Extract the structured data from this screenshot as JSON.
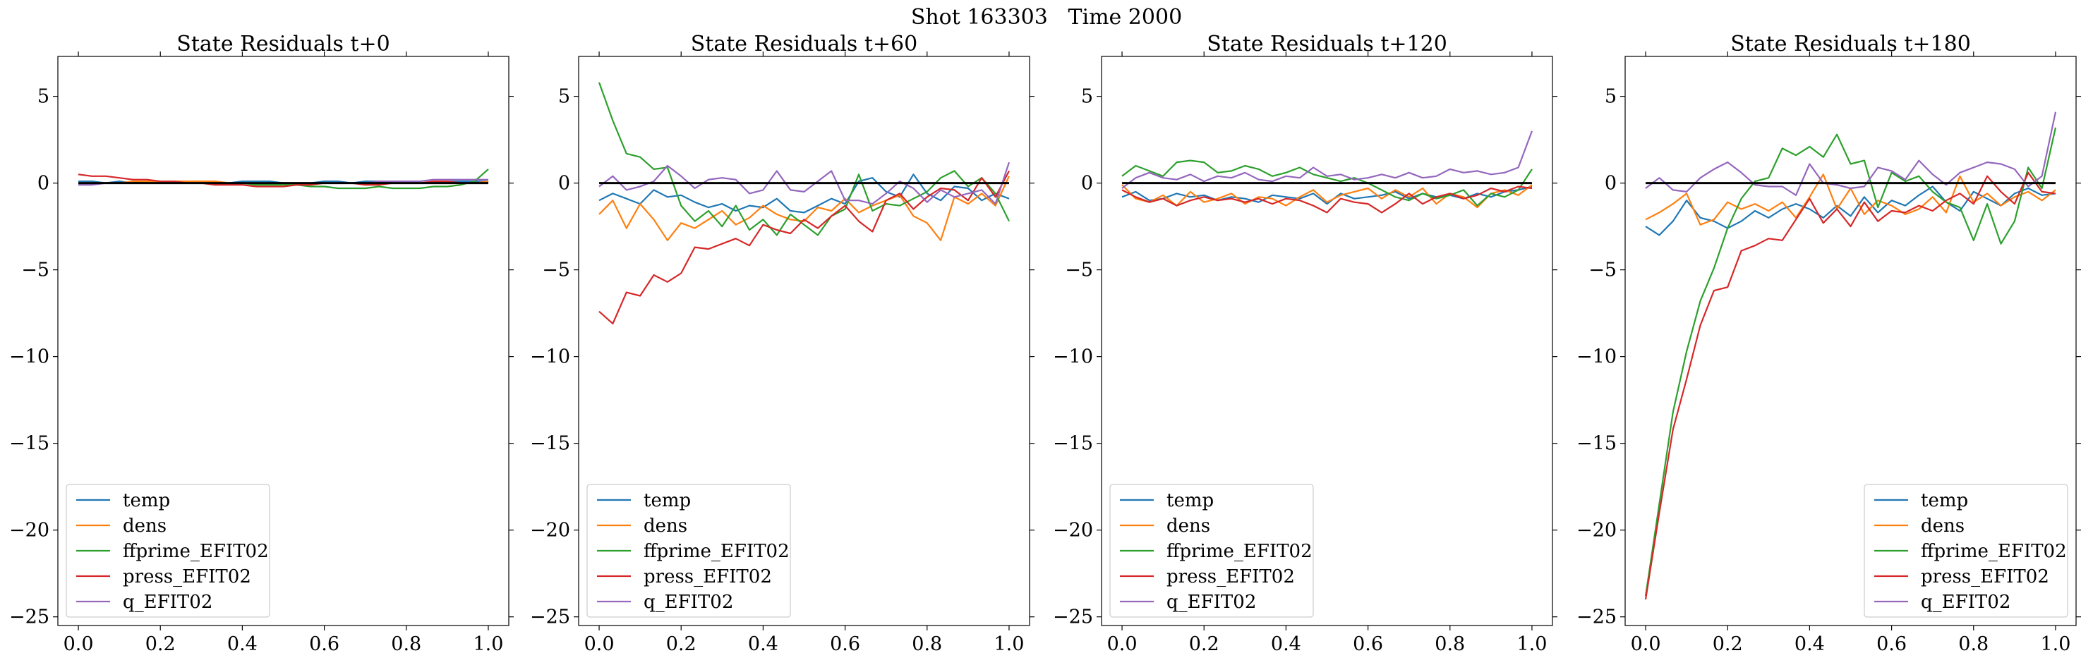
{
  "figure": {
    "suptitle": "Shot 163303   Time 2000"
  },
  "chart_data": [
    {
      "type": "line",
      "title": "State Residuals t+0",
      "xlabel": "",
      "ylabel": "",
      "xlim": [
        -0.05,
        1.05
      ],
      "ylim": [
        -25.5,
        7.3
      ],
      "xticks": [
        "0.0",
        "0.2",
        "0.4",
        "0.6",
        "0.8",
        "1.0"
      ],
      "yticks": [
        "5",
        "0",
        "−5",
        "−10",
        "−15",
        "−20",
        "−25"
      ],
      "legend_position": "lower left",
      "reference_line": 0,
      "series": [
        {
          "name": "temp",
          "color": "#1f77b4",
          "values": [
            0.1,
            0.1,
            0.0,
            0.1,
            0.0,
            0.1,
            0.1,
            0.1,
            0.1,
            0.1,
            0.1,
            0.0,
            0.1,
            0.1,
            0.1,
            0.0,
            0.0,
            0.0,
            0.1,
            0.1,
            0.0,
            0.1,
            0.1,
            0.0,
            0.0,
            0.0,
            0.0,
            0.1,
            0.1,
            0.1,
            0.1
          ]
        },
        {
          "name": "dens",
          "color": "#ff7f0e",
          "values": [
            0.0,
            0.0,
            0.0,
            0.0,
            0.1,
            0.1,
            0.1,
            0.1,
            0.1,
            0.1,
            0.1,
            0.0,
            0.0,
            0.0,
            0.0,
            0.0,
            0.0,
            0.0,
            0.0,
            0.0,
            0.0,
            0.0,
            0.0,
            0.0,
            0.0,
            0.0,
            0.0,
            0.0,
            0.0,
            0.0,
            0.1
          ]
        },
        {
          "name": "ffprime_EFIT02",
          "color": "#2ca02c",
          "values": [
            0.0,
            0.0,
            0.0,
            0.0,
            0.0,
            0.0,
            0.0,
            0.0,
            0.0,
            0.0,
            0.0,
            0.0,
            0.0,
            -0.1,
            -0.1,
            -0.1,
            -0.1,
            -0.2,
            -0.2,
            -0.3,
            -0.3,
            -0.3,
            -0.2,
            -0.3,
            -0.3,
            -0.3,
            -0.2,
            -0.2,
            -0.1,
            0.1,
            0.8
          ]
        },
        {
          "name": "press_EFIT02",
          "color": "#d62728",
          "values": [
            0.5,
            0.4,
            0.4,
            0.3,
            0.2,
            0.2,
            0.1,
            0.1,
            0.0,
            0.0,
            -0.1,
            -0.1,
            -0.1,
            -0.2,
            -0.2,
            -0.2,
            -0.1,
            -0.1,
            0.0,
            0.0,
            0.0,
            -0.1,
            -0.1,
            0.0,
            0.0,
            0.0,
            0.1,
            0.1,
            0.0,
            0.0,
            0.0
          ]
        },
        {
          "name": "q_EFIT02",
          "color": "#9467bd",
          "values": [
            -0.1,
            -0.1,
            0.0,
            0.0,
            0.0,
            0.0,
            0.0,
            0.0,
            0.0,
            0.0,
            0.0,
            0.0,
            0.0,
            0.0,
            0.0,
            0.0,
            0.0,
            0.0,
            0.0,
            0.0,
            0.0,
            0.0,
            0.1,
            0.1,
            0.1,
            0.1,
            0.2,
            0.2,
            0.2,
            0.2,
            0.2
          ]
        }
      ]
    },
    {
      "type": "line",
      "title": "State Residuals t+60",
      "xlabel": "",
      "ylabel": "",
      "xlim": [
        -0.05,
        1.05
      ],
      "ylim": [
        -25.5,
        7.3
      ],
      "xticks": [
        "0.0",
        "0.2",
        "0.4",
        "0.6",
        "0.8",
        "1.0"
      ],
      "yticks": [
        "5",
        "0",
        "−5",
        "−10",
        "−15",
        "−20",
        "−25"
      ],
      "legend_position": "lower left",
      "reference_line": 0,
      "series": [
        {
          "name": "temp",
          "color": "#1f77b4",
          "values": [
            -1.0,
            -0.6,
            -0.9,
            -1.2,
            -0.4,
            -0.8,
            -0.7,
            -1.1,
            -1.4,
            -1.2,
            -1.6,
            -1.3,
            -1.4,
            -0.9,
            -1.6,
            -1.7,
            -1.3,
            -0.9,
            -1.2,
            0.1,
            0.3,
            -0.5,
            -0.8,
            0.5,
            -0.6,
            -1.0,
            -0.2,
            -0.3,
            -1.0,
            -0.6,
            -0.9
          ]
        },
        {
          "name": "dens",
          "color": "#ff7f0e",
          "values": [
            -1.8,
            -1.0,
            -2.6,
            -1.2,
            -2.1,
            -3.3,
            -2.3,
            -2.6,
            -2.1,
            -1.6,
            -2.4,
            -2.0,
            -1.3,
            -1.8,
            -2.1,
            -2.2,
            -1.4,
            -1.6,
            -0.9,
            -1.7,
            -1.3,
            -1.0,
            -0.7,
            -1.9,
            -2.3,
            -3.3,
            -0.8,
            -1.2,
            -0.6,
            -1.3,
            0.4
          ]
        },
        {
          "name": "ffprime_EFIT02",
          "color": "#2ca02c",
          "values": [
            5.8,
            3.6,
            1.7,
            1.5,
            0.8,
            0.9,
            -1.3,
            -2.2,
            -1.6,
            -2.5,
            -1.3,
            -2.7,
            -2.1,
            -3.0,
            -1.8,
            -2.4,
            -3.0,
            -1.9,
            -1.5,
            0.5,
            -1.6,
            -1.2,
            -1.3,
            -0.9,
            -0.5,
            0.3,
            0.7,
            -0.2,
            0.3,
            -0.6,
            -2.2
          ]
        },
        {
          "name": "press_EFIT02",
          "color": "#d62728",
          "values": [
            -7.4,
            -8.1,
            -6.3,
            -6.5,
            -5.3,
            -5.7,
            -5.2,
            -3.7,
            -3.8,
            -3.5,
            -3.2,
            -3.6,
            -2.4,
            -2.7,
            -2.9,
            -2.1,
            -2.6,
            -1.9,
            -1.3,
            -2.2,
            -2.8,
            -1.0,
            -0.6,
            -1.5,
            -0.8,
            -0.3,
            -0.4,
            -1.0,
            0.3,
            -0.8,
            0.7
          ]
        },
        {
          "name": "q_EFIT02",
          "color": "#9467bd",
          "values": [
            -0.2,
            0.4,
            -0.4,
            -0.2,
            0.1,
            1.0,
            0.4,
            -0.3,
            0.2,
            0.3,
            0.2,
            -0.6,
            -0.4,
            0.7,
            -0.4,
            -0.5,
            0.1,
            0.7,
            -1.0,
            -1.0,
            -1.2,
            -0.6,
            0.1,
            -0.3,
            -1.1,
            -0.4,
            -0.8,
            -0.6,
            -0.4,
            -1.2,
            1.2
          ]
        }
      ]
    },
    {
      "type": "line",
      "title": "State Residuals t+120",
      "xlabel": "",
      "ylabel": "",
      "xlim": [
        -0.05,
        1.05
      ],
      "ylim": [
        -25.5,
        7.3
      ],
      "xticks": [
        "0.0",
        "0.2",
        "0.4",
        "0.6",
        "0.8",
        "1.0"
      ],
      "yticks": [
        "5",
        "0",
        "−5",
        "−10",
        "−15",
        "−20",
        "−25"
      ],
      "legend_position": "lower left",
      "reference_line": 0,
      "series": [
        {
          "name": "temp",
          "color": "#1f77b4",
          "values": [
            -0.8,
            -0.5,
            -1.0,
            -0.9,
            -0.6,
            -0.8,
            -0.7,
            -1.0,
            -0.8,
            -0.9,
            -1.1,
            -0.7,
            -0.8,
            -0.9,
            -0.6,
            -1.2,
            -0.6,
            -0.9,
            -0.8,
            -0.7,
            -0.5,
            -0.9,
            -0.6,
            -0.8,
            -0.7,
            -0.9,
            -0.6,
            -0.8,
            -0.5,
            -0.4,
            -0.2
          ]
        },
        {
          "name": "dens",
          "color": "#ff7f0e",
          "values": [
            -0.1,
            -0.9,
            -1.1,
            -0.7,
            -1.3,
            -0.5,
            -1.1,
            -0.9,
            -0.6,
            -1.2,
            -0.8,
            -0.9,
            -1.3,
            -0.8,
            -0.4,
            -1.1,
            -0.7,
            -0.5,
            -0.3,
            -0.9,
            -0.4,
            -0.8,
            -0.3,
            -1.2,
            -0.6,
            -0.8,
            -1.4,
            -0.6,
            -0.4,
            -0.7,
            -0.1
          ]
        },
        {
          "name": "ffprime_EFIT02",
          "color": "#2ca02c",
          "values": [
            0.4,
            1.0,
            0.7,
            0.4,
            1.2,
            1.3,
            1.2,
            0.6,
            0.7,
            1.0,
            0.8,
            0.4,
            0.6,
            0.9,
            0.5,
            0.3,
            0.1,
            0.3,
            0.0,
            -0.4,
            -0.8,
            -1.0,
            -0.6,
            -0.9,
            -0.7,
            -0.4,
            -1.3,
            -0.6,
            -0.8,
            -0.4,
            0.8
          ]
        },
        {
          "name": "press_EFIT02",
          "color": "#d62728",
          "values": [
            -0.4,
            -0.8,
            -1.1,
            -0.9,
            -1.3,
            -1.0,
            -0.8,
            -1.0,
            -0.9,
            -1.1,
            -0.9,
            -1.2,
            -0.9,
            -1.0,
            -1.3,
            -1.7,
            -0.9,
            -1.1,
            -1.2,
            -1.7,
            -1.2,
            -0.6,
            -1.2,
            -0.8,
            -0.6,
            -0.9,
            -0.7,
            -0.3,
            -0.5,
            -0.2,
            -0.3
          ]
        },
        {
          "name": "q_EFIT02",
          "color": "#9467bd",
          "values": [
            -0.3,
            0.3,
            0.6,
            0.3,
            0.2,
            0.5,
            0.1,
            0.4,
            0.3,
            0.6,
            0.2,
            0.1,
            0.4,
            0.3,
            0.9,
            0.4,
            0.5,
            0.2,
            0.3,
            0.5,
            0.3,
            0.6,
            0.3,
            0.4,
            0.8,
            0.6,
            0.7,
            0.5,
            0.6,
            0.9,
            3.0
          ]
        }
      ]
    },
    {
      "type": "line",
      "title": "State Residuals t+180",
      "xlabel": "",
      "ylabel": "",
      "xlim": [
        -0.05,
        1.05
      ],
      "ylim": [
        -25.5,
        7.3
      ],
      "xticks": [
        "0.0",
        "0.2",
        "0.4",
        "0.6",
        "0.8",
        "1.0"
      ],
      "yticks": [
        "5",
        "0",
        "−5",
        "−10",
        "−15",
        "−20",
        "−25"
      ],
      "legend_position": "lower right",
      "reference_line": 0,
      "series": [
        {
          "name": "temp",
          "color": "#1f77b4",
          "values": [
            -2.5,
            -3.0,
            -2.2,
            -1.0,
            -2.0,
            -2.2,
            -2.6,
            -2.2,
            -1.6,
            -2.0,
            -1.5,
            -1.2,
            -1.5,
            -2.0,
            -1.3,
            -1.9,
            -0.8,
            -1.7,
            -1.0,
            -1.3,
            -0.7,
            -0.2,
            -1.1,
            -1.6,
            -0.5,
            -0.9,
            -1.3,
            -0.6,
            -0.3,
            -0.7,
            -0.6
          ]
        },
        {
          "name": "dens",
          "color": "#ff7f0e",
          "values": [
            -2.1,
            -1.7,
            -1.2,
            -0.6,
            -2.4,
            -2.1,
            -1.1,
            -1.5,
            -1.2,
            -1.6,
            -1.1,
            -2.0,
            -0.8,
            0.5,
            -1.5,
            -0.3,
            -1.8,
            -1.0,
            -1.3,
            -1.8,
            -1.5,
            -0.8,
            -1.7,
            0.4,
            -1.1,
            -0.6,
            -1.3,
            -0.8,
            -0.5,
            -1.0,
            -0.4
          ]
        },
        {
          "name": "ffprime_EFIT02",
          "color": "#2ca02c",
          "values": [
            -23.8,
            -18.5,
            -13.2,
            -9.7,
            -6.8,
            -4.9,
            -2.6,
            -0.9,
            0.1,
            0.3,
            2.0,
            1.6,
            2.1,
            1.5,
            2.8,
            1.1,
            1.3,
            -1.4,
            0.6,
            0.1,
            0.4,
            -0.5,
            -1.1,
            -1.4,
            -3.3,
            -1.2,
            -3.5,
            -2.2,
            0.9,
            -0.3,
            3.2
          ]
        },
        {
          "name": "press_EFIT02",
          "color": "#d62728",
          "values": [
            -24.0,
            -19.0,
            -14.2,
            -11.3,
            -8.2,
            -6.2,
            -6.0,
            -3.9,
            -3.6,
            -3.2,
            -3.3,
            -2.1,
            -0.9,
            -2.3,
            -1.5,
            -2.5,
            -1.1,
            -2.2,
            -1.6,
            -1.7,
            -1.3,
            -1.6,
            -1.0,
            -0.6,
            -1.2,
            0.4,
            -0.5,
            -1.2,
            0.6,
            -0.5,
            -0.6
          ]
        },
        {
          "name": "q_EFIT02",
          "color": "#9467bd",
          "values": [
            -0.3,
            0.3,
            -0.4,
            -0.5,
            0.3,
            0.8,
            1.2,
            0.6,
            -0.1,
            -0.2,
            -0.2,
            -0.7,
            1.1,
            0.0,
            -0.1,
            -0.3,
            -0.2,
            0.9,
            0.7,
            0.2,
            1.3,
            0.5,
            -0.1,
            0.6,
            0.9,
            1.2,
            1.1,
            0.8,
            -0.2,
            0.4,
            4.1
          ]
        }
      ]
    }
  ]
}
